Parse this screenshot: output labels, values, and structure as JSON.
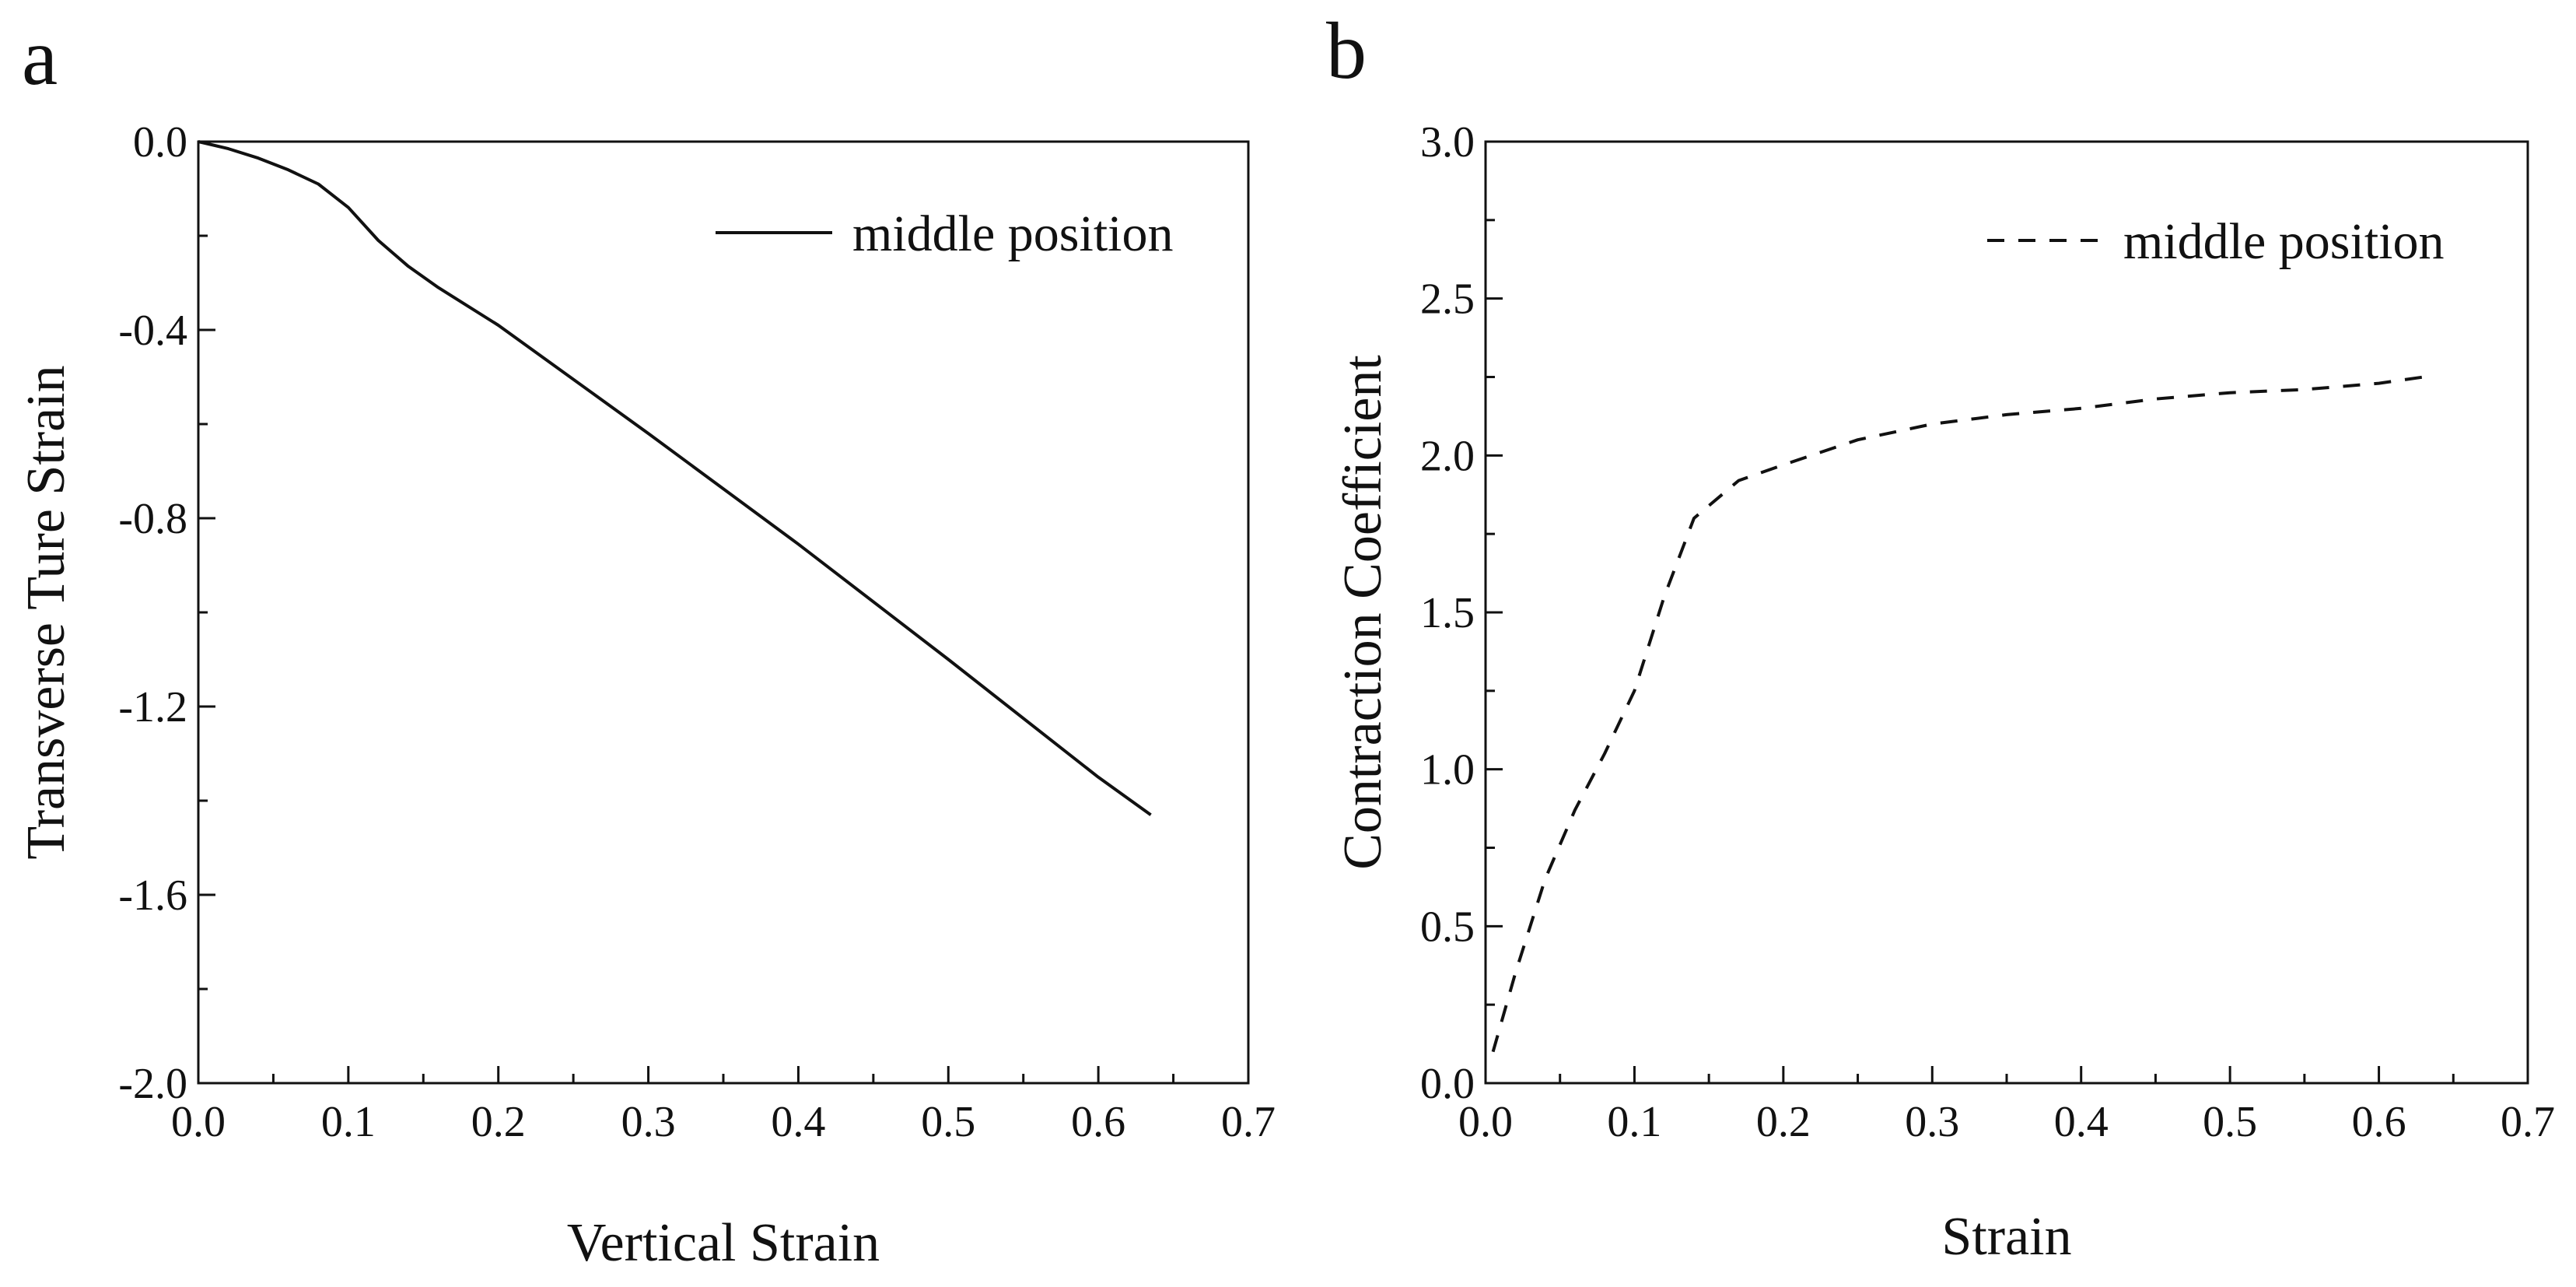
{
  "chart_data": [
    {
      "panel_label": "a",
      "type": "line",
      "xlabel": "Vertical Strain",
      "ylabel": "Transverse Ture Strain",
      "xlim": [
        0.0,
        0.7
      ],
      "ylim": [
        -2.0,
        0.0
      ],
      "x_ticks": [
        0.0,
        0.1,
        0.2,
        0.3,
        0.4,
        0.5,
        0.6,
        0.7
      ],
      "x_tick_labels": [
        "0.0",
        "0.1",
        "0.2",
        "0.3",
        "0.4",
        "0.5",
        "0.6",
        "0.7"
      ],
      "y_ticks": [
        0.0,
        -0.4,
        -0.8,
        -1.2,
        -1.6,
        -2.0
      ],
      "y_tick_labels": [
        "0.0",
        "-0.4",
        "-0.8",
        "-1.2",
        "-1.6",
        "-2.0"
      ],
      "grid": false,
      "legend_position": "top-right",
      "series": [
        {
          "name": "middle position",
          "line_style": "solid",
          "x": [
            0.0,
            0.02,
            0.04,
            0.06,
            0.08,
            0.1,
            0.12,
            0.14,
            0.16,
            0.2,
            0.3,
            0.4,
            0.5,
            0.6,
            0.635
          ],
          "y": [
            0.0,
            -0.015,
            -0.035,
            -0.06,
            -0.09,
            -0.14,
            -0.21,
            -0.265,
            -0.31,
            -0.39,
            -0.62,
            -0.855,
            -1.1,
            -1.35,
            -1.43
          ]
        }
      ]
    },
    {
      "panel_label": "b",
      "type": "line",
      "xlabel": "Strain",
      "ylabel": "Contraction Coefficient",
      "xlim": [
        0.0,
        0.7
      ],
      "ylim": [
        0.0,
        3.0
      ],
      "x_ticks": [
        0.0,
        0.1,
        0.2,
        0.3,
        0.4,
        0.5,
        0.6,
        0.7
      ],
      "x_tick_labels": [
        "0.0",
        "0.1",
        "0.2",
        "0.3",
        "0.4",
        "0.5",
        "0.6",
        "0.7"
      ],
      "y_ticks": [
        0.0,
        0.5,
        1.0,
        1.5,
        2.0,
        2.5,
        3.0
      ],
      "y_tick_labels": [
        "0.0",
        "0.5",
        "1.0",
        "1.5",
        "2.0",
        "2.5",
        "3.0"
      ],
      "grid": false,
      "legend_position": "top-right",
      "series": [
        {
          "name": "middle position",
          "line_style": "dashed",
          "x": [
            0.005,
            0.02,
            0.04,
            0.06,
            0.08,
            0.1,
            0.12,
            0.14,
            0.17,
            0.2,
            0.25,
            0.3,
            0.35,
            0.4,
            0.45,
            0.5,
            0.55,
            0.6,
            0.63
          ],
          "y": [
            0.1,
            0.35,
            0.65,
            0.87,
            1.05,
            1.25,
            1.55,
            1.8,
            1.92,
            1.97,
            2.05,
            2.1,
            2.13,
            2.15,
            2.18,
            2.2,
            2.21,
            2.23,
            2.25
          ]
        }
      ]
    }
  ]
}
